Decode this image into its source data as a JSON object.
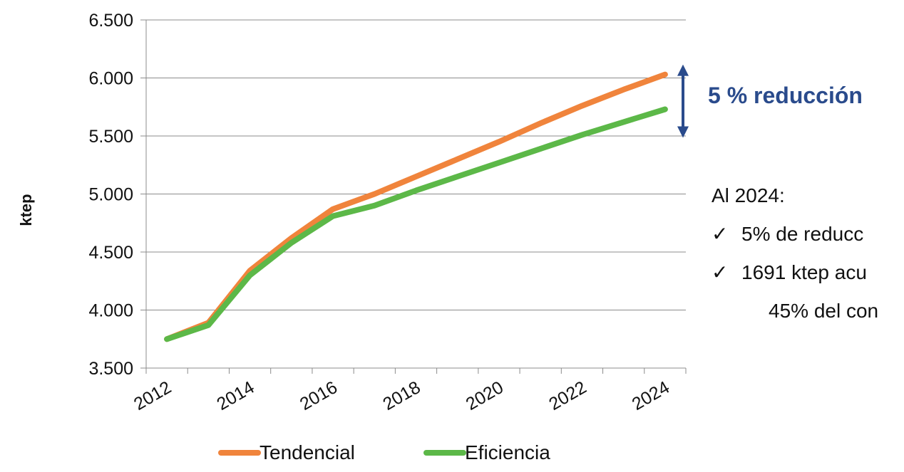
{
  "chart_data": {
    "type": "line",
    "x": [
      2012,
      2013,
      2014,
      2015,
      2016,
      2017,
      2018,
      2019,
      2020,
      2021,
      2022,
      2023,
      2024
    ],
    "series": [
      {
        "name": "Tendencial",
        "color": "#f0843c",
        "values": [
          3750,
          3890,
          4340,
          4620,
          4870,
          5000,
          5150,
          5300,
          5450,
          5610,
          5760,
          5900,
          6030
        ]
      },
      {
        "name": "Eficiencia",
        "color": "#5cb848",
        "values": [
          3750,
          3870,
          4300,
          4580,
          4810,
          4900,
          5030,
          5150,
          5270,
          5390,
          5510,
          5620,
          5730
        ]
      }
    ],
    "title": "",
    "xlabel": "",
    "ylabel": "ktep",
    "ylim": [
      3500,
      6500
    ],
    "yticks": [
      "3.500",
      "4.000",
      "4.500",
      "5.000",
      "5.500",
      "6.000",
      "6.500"
    ],
    "xtick_labels": [
      "2012",
      "2014",
      "2016",
      "2018",
      "2020",
      "2022",
      "2024"
    ],
    "grid": true,
    "legend": "bottom"
  },
  "annotation": {
    "headline": "5 % reducción",
    "headline_color": "#2a4b8c",
    "arrow_color": "#2a4b8c",
    "notes_title": "Al 2024:",
    "check_symbol": "✓",
    "bullets": [
      "5% de reducc",
      "1691 ktep acu"
    ],
    "continuation": "45% del con"
  }
}
